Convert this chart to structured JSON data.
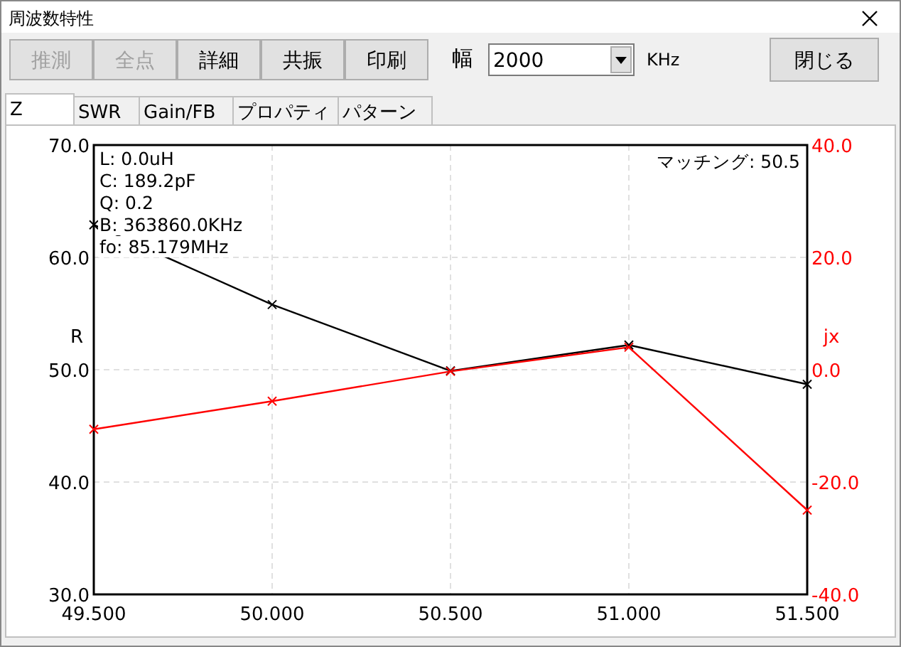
{
  "chart_data": {
    "type": "line",
    "title": "周波数特性",
    "ylabel": "R",
    "y2label": "jx",
    "x": [
      49.5,
      50.0,
      50.5,
      51.0,
      51.5
    ],
    "series": [
      {
        "color": "#000000",
        "values": [
          62.9,
          55.8,
          49.9,
          52.2,
          48.7
        ]
      },
      {
        "color": "#ff0000",
        "axis": "y2",
        "values": [
          -10.6,
          -5.6,
          -0.3,
          4.0,
          -25.0
        ]
      }
    ],
    "xlim": [
      49.5,
      51.5
    ],
    "xticks": [
      {
        "value": 49.5,
        "label": "49.500"
      },
      {
        "value": 50.0,
        "label": "50.000"
      },
      {
        "value": 50.5,
        "label": "50.500"
      },
      {
        "value": 51.0,
        "label": "51.000"
      },
      {
        "value": 51.5,
        "label": "51.500"
      }
    ],
    "ylim": [
      30,
      70
    ],
    "yticks": [
      {
        "value": 30,
        "label": "30.0"
      },
      {
        "value": 40,
        "label": "40.0"
      },
      {
        "value": 50,
        "label": "50.0"
      },
      {
        "value": 60,
        "label": "60.0"
      },
      {
        "value": 70,
        "label": "70.0"
      }
    ],
    "y2lim": [
      -40,
      40
    ],
    "y2ticks": [
      {
        "value": -40,
        "label": "-40.0"
      },
      {
        "value": -20,
        "label": "-20.0"
      },
      {
        "value": 0,
        "label": "0.0"
      },
      {
        "value": 20,
        "label": "20.0"
      },
      {
        "value": 40,
        "label": "40.0"
      }
    ],
    "grid": true,
    "marker": "cross",
    "line_style": "solid",
    "annotations": [
      "L: 0.0uH",
      "C: 189.2pF",
      "Q: 0.2",
      "B: 363860.0KHz",
      "fo: 85.179MHz",
      "マッチング: 50.5",
      "推測",
      "全点",
      "詳細",
      "共振",
      "印刷",
      "幅",
      "2000",
      "KHz",
      "閉じる",
      "Z",
      "SWR",
      "Gain/FB",
      "プロパティ",
      "パターン"
    ]
  }
}
